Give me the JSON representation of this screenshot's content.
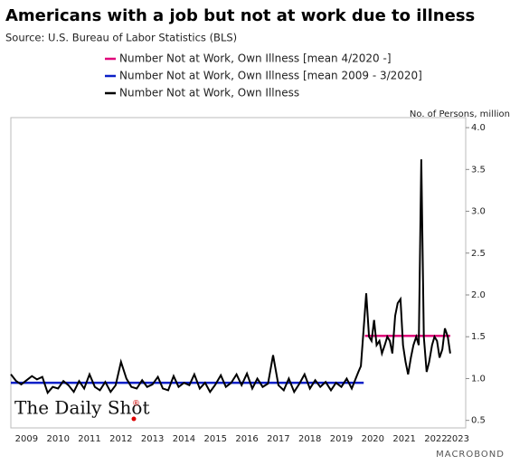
{
  "chart_data": {
    "type": "line",
    "title": "Americans with a job but not at work due to illness",
    "subtitle": "Source: U.S. Bureau of Labor Statistics (BLS)",
    "y_label": "No. of Persons, million",
    "watermark": "The Daily Shot",
    "watermark_mark": "®",
    "brand": "MACROBOND",
    "xlim": [
      2009.0,
      2023.45
    ],
    "ylim": [
      0.41,
      4.12
    ],
    "yticks": [
      {
        "value": 0.5,
        "label": "0.5"
      },
      {
        "value": 1,
        "label": "1.0"
      },
      {
        "value": 1.5,
        "label": "1.5"
      },
      {
        "value": 2,
        "label": "2.0"
      },
      {
        "value": 2.5,
        "label": "2.5"
      },
      {
        "value": 3,
        "label": "3.0"
      },
      {
        "value": 3.5,
        "label": "3.5"
      },
      {
        "value": 4,
        "label": "4.0"
      }
    ],
    "xticks": [
      {
        "value": 2009.5,
        "label": "2009"
      },
      {
        "value": 2010.5,
        "label": "2010"
      },
      {
        "value": 2011.5,
        "label": "2011"
      },
      {
        "value": 2012.5,
        "label": "2012"
      },
      {
        "value": 2013.5,
        "label": "2013"
      },
      {
        "value": 2014.5,
        "label": "2014"
      },
      {
        "value": 2015.5,
        "label": "2015"
      },
      {
        "value": 2016.5,
        "label": "2016"
      },
      {
        "value": 2017.5,
        "label": "2017"
      },
      {
        "value": 2018.5,
        "label": "2018"
      },
      {
        "value": 2019.5,
        "label": "2019"
      },
      {
        "value": 2020.5,
        "label": "2020"
      },
      {
        "value": 2021.5,
        "label": "2021"
      },
      {
        "value": 2022.5,
        "label": "2022"
      },
      {
        "value": 2023.2,
        "label": "2023"
      }
    ],
    "series": [
      {
        "name": "Number Not at Work, Own Illness [mean 4/2020 -]",
        "color": "#e0007a",
        "x": [
          2020.25,
          2022.96
        ],
        "values": [
          1.51,
          1.51
        ]
      },
      {
        "name": "Number Not at Work, Own Illness [mean 2009 - 3/2020]",
        "color": "#0a1fc7",
        "x": [
          2009.0,
          2020.21
        ],
        "values": [
          0.95,
          0.95
        ]
      },
      {
        "name": "Number Not at Work, Own Illness",
        "color": "#000000",
        "x": [
          2009.0,
          2009.17,
          2009.33,
          2009.5,
          2009.67,
          2009.83,
          2010.0,
          2010.17,
          2010.33,
          2010.5,
          2010.67,
          2010.83,
          2011.0,
          2011.17,
          2011.33,
          2011.5,
          2011.67,
          2011.83,
          2012.0,
          2012.17,
          2012.33,
          2012.5,
          2012.67,
          2012.83,
          2013.0,
          2013.17,
          2013.33,
          2013.5,
          2013.67,
          2013.83,
          2014.0,
          2014.17,
          2014.33,
          2014.5,
          2014.67,
          2014.83,
          2015.0,
          2015.17,
          2015.33,
          2015.5,
          2015.67,
          2015.83,
          2016.0,
          2016.17,
          2016.33,
          2016.5,
          2016.67,
          2016.83,
          2017.0,
          2017.17,
          2017.33,
          2017.5,
          2017.67,
          2017.83,
          2018.0,
          2018.17,
          2018.33,
          2018.5,
          2018.67,
          2018.83,
          2019.0,
          2019.17,
          2019.33,
          2019.5,
          2019.67,
          2019.83,
          2020.04,
          2020.12,
          2020.21,
          2020.29,
          2020.38,
          2020.46,
          2020.54,
          2020.62,
          2020.71,
          2020.79,
          2020.88,
          2020.96,
          2021.04,
          2021.12,
          2021.21,
          2021.29,
          2021.38,
          2021.46,
          2021.54,
          2021.62,
          2021.71,
          2021.79,
          2021.88,
          2021.96,
          2022.04,
          2022.12,
          2022.21,
          2022.29,
          2022.38,
          2022.46,
          2022.54,
          2022.62,
          2022.71,
          2022.79,
          2022.88,
          2022.96
        ],
        "values": [
          1.05,
          0.97,
          0.93,
          0.98,
          1.03,
          0.99,
          1.02,
          0.83,
          0.9,
          0.88,
          0.97,
          0.92,
          0.84,
          0.97,
          0.88,
          1.05,
          0.9,
          0.86,
          0.96,
          0.84,
          0.92,
          1.2,
          1.0,
          0.9,
          0.88,
          0.98,
          0.9,
          0.93,
          1.02,
          0.88,
          0.86,
          1.03,
          0.9,
          0.95,
          0.92,
          1.05,
          0.88,
          0.95,
          0.84,
          0.93,
          1.04,
          0.9,
          0.95,
          1.05,
          0.92,
          1.06,
          0.88,
          1.0,
          0.9,
          0.94,
          1.28,
          0.92,
          0.86,
          1.0,
          0.84,
          0.94,
          1.05,
          0.88,
          0.98,
          0.9,
          0.96,
          0.86,
          0.95,
          0.9,
          1.0,
          0.88,
          1.08,
          1.15,
          1.6,
          2.02,
          1.5,
          1.45,
          1.7,
          1.4,
          1.45,
          1.3,
          1.4,
          1.5,
          1.45,
          1.3,
          1.75,
          1.9,
          1.95,
          1.4,
          1.2,
          1.05,
          1.25,
          1.4,
          1.5,
          1.4,
          3.62,
          1.5,
          1.08,
          1.2,
          1.4,
          1.5,
          1.45,
          1.25,
          1.35,
          1.6,
          1.5,
          1.3
        ]
      }
    ]
  }
}
